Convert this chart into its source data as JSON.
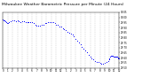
{
  "title": "Milwaukee Weather Barometric Pressure per Minute (24 Hours)",
  "title_fontsize": 3.2,
  "dot_color": "blue",
  "dot_size": 0.5,
  "bg_color": "#ffffff",
  "grid_color": "#aaaaaa",
  "x_min": 0,
  "x_max": 1440,
  "y_min": 29.5,
  "y_max": 30.05,
  "x_ticks": [
    0,
    60,
    120,
    180,
    240,
    300,
    360,
    420,
    480,
    540,
    600,
    660,
    720,
    780,
    840,
    900,
    960,
    1020,
    1080,
    1140,
    1200,
    1260,
    1320,
    1380,
    1440
  ],
  "x_tick_labels": [
    "0",
    "1",
    "2",
    "3",
    "4",
    "5",
    "6",
    "7",
    "8",
    "9",
    "10",
    "11",
    "12",
    "1",
    "2",
    "3",
    "4",
    "5",
    "6",
    "7",
    "8",
    "9",
    "10",
    "11",
    "12"
  ],
  "y_ticks": [
    29.5,
    29.55,
    29.6,
    29.65,
    29.7,
    29.75,
    29.8,
    29.85,
    29.9,
    29.95,
    30.0,
    30.05
  ],
  "pressure_data": [
    [
      0,
      29.98
    ],
    [
      10,
      29.97
    ],
    [
      20,
      29.97
    ],
    [
      30,
      29.96
    ],
    [
      40,
      29.95
    ],
    [
      50,
      29.94
    ],
    [
      60,
      29.94
    ],
    [
      80,
      29.95
    ],
    [
      100,
      29.96
    ],
    [
      120,
      29.97
    ],
    [
      140,
      29.97
    ],
    [
      160,
      29.96
    ],
    [
      180,
      29.97
    ],
    [
      200,
      29.96
    ],
    [
      220,
      29.95
    ],
    [
      240,
      29.96
    ],
    [
      260,
      29.96
    ],
    [
      280,
      29.95
    ],
    [
      300,
      29.95
    ],
    [
      320,
      29.95
    ],
    [
      340,
      29.95
    ],
    [
      360,
      29.95
    ],
    [
      380,
      29.94
    ],
    [
      400,
      29.93
    ],
    [
      420,
      29.92
    ],
    [
      440,
      29.92
    ],
    [
      460,
      29.92
    ],
    [
      480,
      29.93
    ],
    [
      500,
      29.93
    ],
    [
      520,
      29.94
    ],
    [
      540,
      29.94
    ],
    [
      560,
      29.95
    ],
    [
      580,
      29.95
    ],
    [
      600,
      29.95
    ],
    [
      620,
      29.95
    ],
    [
      640,
      29.94
    ],
    [
      660,
      29.93
    ],
    [
      680,
      29.93
    ],
    [
      700,
      29.91
    ],
    [
      720,
      29.91
    ],
    [
      740,
      29.89
    ],
    [
      760,
      29.88
    ],
    [
      780,
      29.87
    ],
    [
      800,
      29.86
    ],
    [
      820,
      29.85
    ],
    [
      840,
      29.84
    ],
    [
      860,
      29.83
    ],
    [
      880,
      29.81
    ],
    [
      900,
      29.79
    ],
    [
      920,
      29.77
    ],
    [
      940,
      29.75
    ],
    [
      960,
      29.73
    ],
    [
      980,
      29.71
    ],
    [
      1000,
      29.69
    ],
    [
      1020,
      29.67
    ],
    [
      1040,
      29.65
    ],
    [
      1060,
      29.63
    ],
    [
      1080,
      29.61
    ],
    [
      1100,
      29.59
    ],
    [
      1120,
      29.58
    ],
    [
      1140,
      29.57
    ],
    [
      1160,
      29.56
    ],
    [
      1180,
      29.56
    ],
    [
      1200,
      29.55
    ],
    [
      1220,
      29.54
    ],
    [
      1240,
      29.54
    ],
    [
      1260,
      29.55
    ],
    [
      1280,
      29.56
    ],
    [
      1300,
      29.57
    ],
    [
      1310,
      29.58
    ],
    [
      1320,
      29.59
    ],
    [
      1330,
      29.61
    ],
    [
      1340,
      29.62
    ],
    [
      1350,
      29.62
    ],
    [
      1360,
      29.62
    ],
    [
      1370,
      29.61
    ],
    [
      1380,
      29.61
    ],
    [
      1390,
      29.61
    ],
    [
      1400,
      29.61
    ],
    [
      1410,
      29.61
    ],
    [
      1420,
      29.6
    ],
    [
      1430,
      29.59
    ],
    [
      1440,
      29.59
    ]
  ]
}
